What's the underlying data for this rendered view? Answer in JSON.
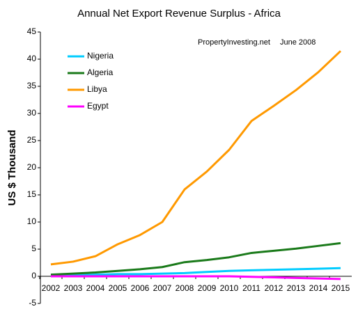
{
  "chart_data": {
    "type": "line",
    "title": "Annual Net Export Revenue Surplus - Africa",
    "y_label": "US $ Thousand",
    "annotations": [
      "PropertyInvesting.net",
      "June 2008"
    ],
    "categories": [
      "2002",
      "2003",
      "2004",
      "2005",
      "2006",
      "2007",
      "2008",
      "2009",
      "2010",
      "2011",
      "2012",
      "2013",
      "2014",
      "2015"
    ],
    "series": [
      {
        "name": "Nigeria",
        "color": "#00ccff",
        "values": [
          0.1,
          0.2,
          0.3,
          0.4,
          0.4,
          0.5,
          0.6,
          0.8,
          1.0,
          1.1,
          1.2,
          1.3,
          1.4,
          1.5
        ]
      },
      {
        "name": "Algeria",
        "color": "#1a7a1a",
        "values": [
          0.3,
          0.5,
          0.7,
          1.0,
          1.3,
          1.7,
          2.6,
          3.0,
          3.5,
          4.3,
          4.7,
          5.1,
          5.6,
          6.1
        ]
      },
      {
        "name": "Libya",
        "color": "#ff9900",
        "values": [
          2.2,
          2.7,
          3.7,
          5.9,
          7.6,
          10.0,
          16.0,
          19.3,
          23.3,
          28.6,
          31.4,
          34.3,
          37.6,
          41.5
        ]
      },
      {
        "name": "Egypt",
        "color": "#ff00ff",
        "values": [
          0,
          0,
          0,
          0,
          0,
          0,
          0,
          0,
          0,
          -0.1,
          -0.2,
          -0.3,
          -0.4,
          -0.5
        ]
      }
    ],
    "ylim": [
      -5,
      45
    ],
    "yticks": [
      -5,
      0,
      5,
      10,
      15,
      20,
      25,
      30,
      35,
      40,
      45
    ],
    "grid": false,
    "legend": "top-left"
  }
}
